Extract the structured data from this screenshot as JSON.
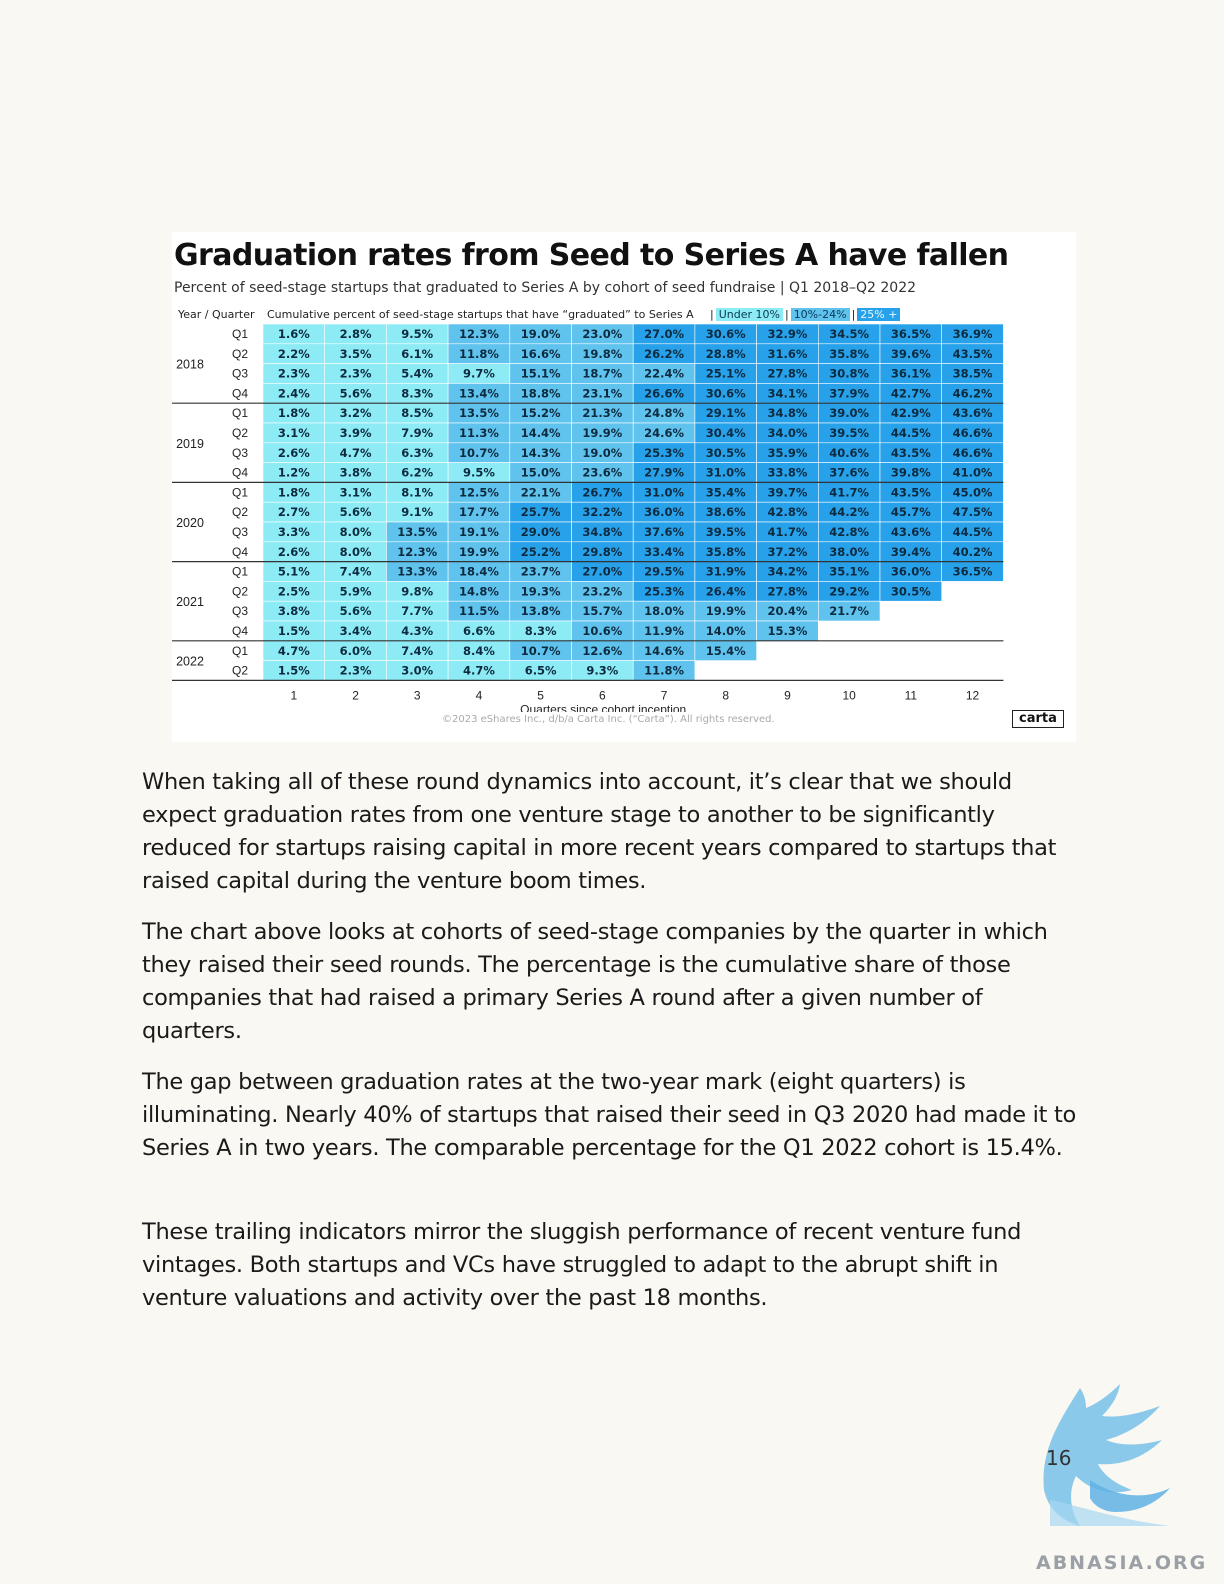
{
  "figure": {
    "title": "Graduation rates from Seed to Series A have fallen",
    "subtitle": "Percent of seed-stage startups that graduated to Series A by cohort of seed fundraise | Q1 2018–Q2 2022",
    "col_header_yq": "Year / Quarter",
    "col_header_desc": "Cumulative percent of seed-stage startups that have “graduated” to Series A",
    "legend": [
      "Under 10%",
      "10%-24%",
      "25% +"
    ],
    "legend_separator": "|",
    "colors": {
      "low": "#8cebf4",
      "mid": "#5fc3ee",
      "high": "#27a1ea"
    },
    "copyright": "©2023 eShares Inc., d/b/a Carta Inc. (“Carta”). All rights reserved.",
    "logo_text": "carta"
  },
  "chart_data": {
    "type": "heatmap",
    "title": "Graduation rates from Seed to Series A have fallen",
    "subtitle": "Percent of seed-stage startups that graduated to Series A by cohort of seed fundraise | Q1 2018–Q2 2022",
    "xlabel": "Quarters since cohort inception",
    "ylabel": "Year / Quarter",
    "x": [
      "1",
      "2",
      "3",
      "4",
      "5",
      "6",
      "7",
      "8",
      "9",
      "10",
      "11",
      "12"
    ],
    "thresholds": [
      10,
      25
    ],
    "rows": [
      {
        "year": "2018",
        "quarter": "Q1",
        "values": [
          "1.6%",
          "2.8%",
          "9.5%",
          "12.3%",
          "19.0%",
          "23.0%",
          "27.0%",
          "30.6%",
          "32.9%",
          "34.5%",
          "36.5%",
          "36.9%"
        ]
      },
      {
        "year": "2018",
        "quarter": "Q2",
        "values": [
          "2.2%",
          "3.5%",
          "6.1%",
          "11.8%",
          "16.6%",
          "19.8%",
          "26.2%",
          "28.8%",
          "31.6%",
          "35.8%",
          "39.6%",
          "43.5%"
        ]
      },
      {
        "year": "2018",
        "quarter": "Q3",
        "values": [
          "2.3%",
          "2.3%",
          "5.4%",
          "9.7%",
          "15.1%",
          "18.7%",
          "22.4%",
          "25.1%",
          "27.8%",
          "30.8%",
          "36.1%",
          "38.5%"
        ]
      },
      {
        "year": "2018",
        "quarter": "Q4",
        "values": [
          "2.4%",
          "5.6%",
          "8.3%",
          "13.4%",
          "18.8%",
          "23.1%",
          "26.6%",
          "30.6%",
          "34.1%",
          "37.9%",
          "42.7%",
          "46.2%"
        ]
      },
      {
        "year": "2019",
        "quarter": "Q1",
        "values": [
          "1.8%",
          "3.2%",
          "8.5%",
          "13.5%",
          "15.2%",
          "21.3%",
          "24.8%",
          "29.1%",
          "34.8%",
          "39.0%",
          "42.9%",
          "43.6%"
        ]
      },
      {
        "year": "2019",
        "quarter": "Q2",
        "values": [
          "3.1%",
          "3.9%",
          "7.9%",
          "11.3%",
          "14.4%",
          "19.9%",
          "24.6%",
          "30.4%",
          "34.0%",
          "39.5%",
          "44.5%",
          "46.6%"
        ]
      },
      {
        "year": "2019",
        "quarter": "Q3",
        "values": [
          "2.6%",
          "4.7%",
          "6.3%",
          "10.7%",
          "14.3%",
          "19.0%",
          "25.3%",
          "30.5%",
          "35.9%",
          "40.6%",
          "43.5%",
          "46.6%"
        ]
      },
      {
        "year": "2019",
        "quarter": "Q4",
        "values": [
          "1.2%",
          "3.8%",
          "6.2%",
          "9.5%",
          "15.0%",
          "23.6%",
          "27.9%",
          "31.0%",
          "33.8%",
          "37.6%",
          "39.8%",
          "41.0%"
        ]
      },
      {
        "year": "2020",
        "quarter": "Q1",
        "values": [
          "1.8%",
          "3.1%",
          "8.1%",
          "12.5%",
          "22.1%",
          "26.7%",
          "31.0%",
          "35.4%",
          "39.7%",
          "41.7%",
          "43.5%",
          "45.0%"
        ]
      },
      {
        "year": "2020",
        "quarter": "Q2",
        "values": [
          "2.7%",
          "5.6%",
          "9.1%",
          "17.7%",
          "25.7%",
          "32.2%",
          "36.0%",
          "38.6%",
          "42.8%",
          "44.2%",
          "45.7%",
          "47.5%"
        ]
      },
      {
        "year": "2020",
        "quarter": "Q3",
        "values": [
          "3.3%",
          "8.0%",
          "13.5%",
          "19.1%",
          "29.0%",
          "34.8%",
          "37.6%",
          "39.5%",
          "41.7%",
          "42.8%",
          "43.6%",
          "44.5%"
        ]
      },
      {
        "year": "2020",
        "quarter": "Q4",
        "values": [
          "2.6%",
          "8.0%",
          "12.3%",
          "19.9%",
          "25.2%",
          "29.8%",
          "33.4%",
          "35.8%",
          "37.2%",
          "38.0%",
          "39.4%",
          "40.2%"
        ]
      },
      {
        "year": "2021",
        "quarter": "Q1",
        "values": [
          "5.1%",
          "7.4%",
          "13.3%",
          "18.4%",
          "23.7%",
          "27.0%",
          "29.5%",
          "31.9%",
          "34.2%",
          "35.1%",
          "36.0%",
          "36.5%"
        ]
      },
      {
        "year": "2021",
        "quarter": "Q2",
        "values": [
          "2.5%",
          "5.9%",
          "9.8%",
          "14.8%",
          "19.3%",
          "23.2%",
          "25.3%",
          "26.4%",
          "27.8%",
          "29.2%",
          "30.5%"
        ]
      },
      {
        "year": "2021",
        "quarter": "Q3",
        "values": [
          "3.8%",
          "5.6%",
          "7.7%",
          "11.5%",
          "13.8%",
          "15.7%",
          "18.0%",
          "19.9%",
          "20.4%",
          "21.7%"
        ]
      },
      {
        "year": "2021",
        "quarter": "Q4",
        "values": [
          "1.5%",
          "3.4%",
          "4.3%",
          "6.6%",
          "8.3%",
          "10.6%",
          "11.9%",
          "14.0%",
          "15.3%"
        ]
      },
      {
        "year": "2022",
        "quarter": "Q1",
        "values": [
          "4.7%",
          "6.0%",
          "7.4%",
          "8.4%",
          "10.7%",
          "12.6%",
          "14.6%",
          "15.4%"
        ]
      },
      {
        "year": "2022",
        "quarter": "Q2",
        "values": [
          "1.5%",
          "2.3%",
          "3.0%",
          "4.7%",
          "6.5%",
          "9.3%",
          "11.8%"
        ]
      }
    ],
    "years": [
      "2018",
      "2019",
      "2020",
      "2021",
      "2022"
    ],
    "legend": [
      "Under 10%",
      "10%-24%",
      "25% +"
    ]
  },
  "body": {
    "paragraphs": [
      "When taking all of these round dynamics into account, it’s clear that we should expect graduation rates from one venture stage to another to be significantly reduced for startups raising capital in more recent years compared to startups that raised capital during the venture boom times.",
      "The chart above looks at cohorts of seed-stage companies by the quarter in which they raised their seed rounds. The percentage is the cumulative share of those companies that had raised a primary Series A round after a given number of quarters.",
      "The gap between graduation rates at the two-year mark (eight quarters) is illuminating. Nearly 40% of startups that raised their seed in Q3 2020 had made it to Series A in two years. The comparable percentage for the Q1 2022 cohort is 15.4%.",
      "These trailing indicators mirror the sluggish performance of recent venture fund vintages. Both startups and VCs have struggled to adapt to the abrupt shift in venture valuations and activity over the past 18 months."
    ]
  },
  "footer": {
    "page_number": "16",
    "brand_text": "ABNASIA.ORG",
    "brand_icon": "bird-logo-icon"
  }
}
